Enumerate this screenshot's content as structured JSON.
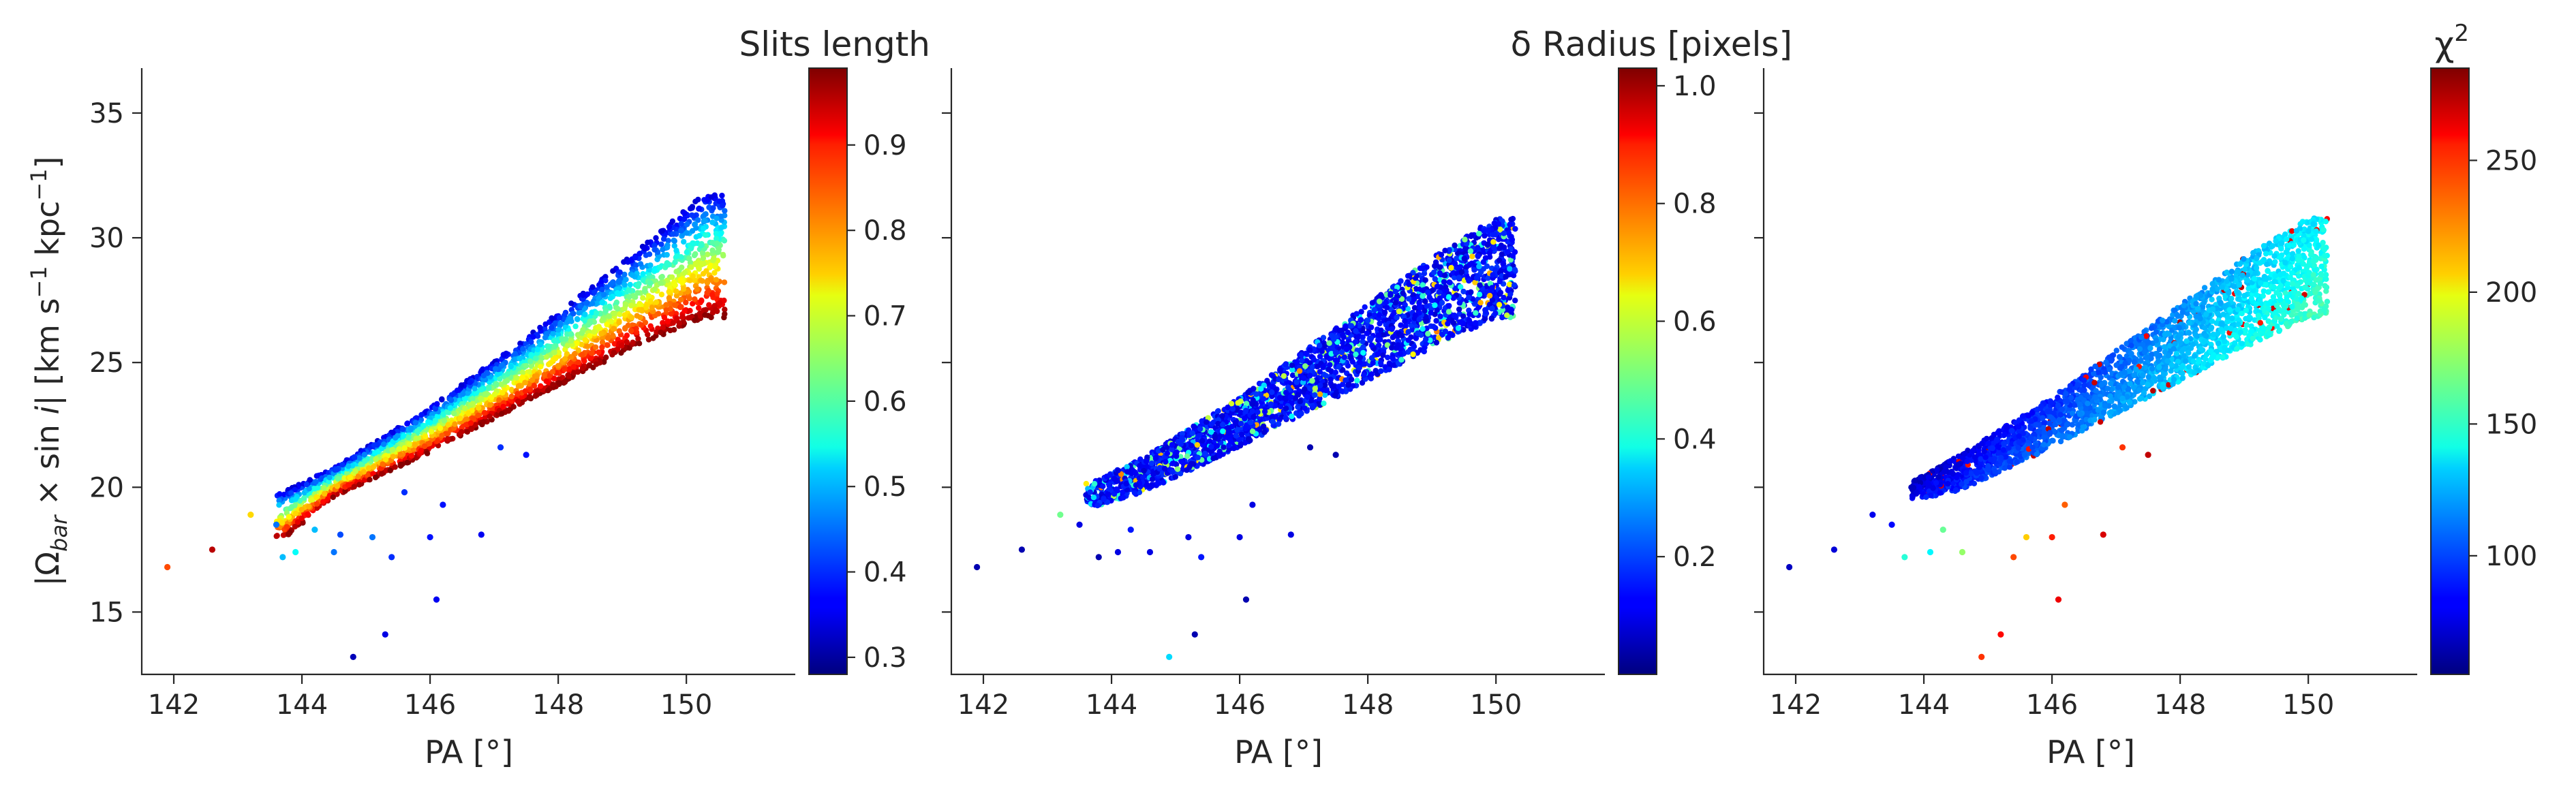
{
  "chart_data": [
    {
      "type": "scatter",
      "panel": 1,
      "xlabel": "PA [°]",
      "ylabel": "|Ω_bar × sin i|   [km s⁻¹ kpc⁻¹]",
      "xlim": [
        141.5,
        151.7
      ],
      "ylim": [
        12.5,
        36.8
      ],
      "xticks": [
        142,
        144,
        146,
        148,
        150
      ],
      "yticks": [
        15,
        20,
        25,
        30,
        35
      ],
      "colorbar": {
        "title": "Slits length",
        "colormap": "jet",
        "range": [
          0.28,
          0.99
        ],
        "ticks": [
          0.3,
          0.4,
          0.5,
          0.6,
          0.7,
          0.8,
          0.9
        ],
        "tick_labels": [
          "0.3",
          "0.4",
          "0.5",
          "0.6",
          "0.7",
          "0.8",
          "0.9"
        ]
      },
      "main_cloud": {
        "x_range": [
          143.6,
          150.6
        ],
        "lower_edge": [
          [
            143.7,
            17.9
          ],
          [
            144.5,
            19.6
          ],
          [
            146.0,
            21.4
          ],
          [
            147.5,
            23.4
          ],
          [
            149.0,
            25.4
          ],
          [
            150.3,
            26.8
          ]
        ],
        "upper_edge": [
          [
            143.7,
            19.8
          ],
          [
            144.5,
            20.8
          ],
          [
            146.0,
            23.2
          ],
          [
            147.5,
            26.0
          ],
          [
            149.0,
            29.0
          ],
          [
            150.3,
            31.8
          ]
        ],
        "color_trend": "blue/cyan at upper edge to dark red at lower edge"
      },
      "outliers": [
        {
          "x": 141.9,
          "y": 16.8,
          "c": 0.85
        },
        {
          "x": 142.6,
          "y": 17.5,
          "c": 0.95
        },
        {
          "x": 143.2,
          "y": 18.9,
          "c": 0.75
        },
        {
          "x": 143.6,
          "y": 18.5,
          "c": 0.45
        },
        {
          "x": 143.7,
          "y": 17.2,
          "c": 0.5
        },
        {
          "x": 143.9,
          "y": 17.4,
          "c": 0.55
        },
        {
          "x": 144.2,
          "y": 18.3,
          "c": 0.5
        },
        {
          "x": 144.5,
          "y": 17.4,
          "c": 0.45
        },
        {
          "x": 144.6,
          "y": 18.1,
          "c": 0.42
        },
        {
          "x": 144.8,
          "y": 13.2,
          "c": 0.32
        },
        {
          "x": 145.1,
          "y": 18.0,
          "c": 0.45
        },
        {
          "x": 145.3,
          "y": 14.1,
          "c": 0.35
        },
        {
          "x": 145.4,
          "y": 17.2,
          "c": 0.4
        },
        {
          "x": 145.6,
          "y": 19.8,
          "c": 0.4
        },
        {
          "x": 146.0,
          "y": 18.0,
          "c": 0.38
        },
        {
          "x": 146.1,
          "y": 15.5,
          "c": 0.36
        },
        {
          "x": 146.2,
          "y": 19.3,
          "c": 0.38
        },
        {
          "x": 146.8,
          "y": 18.1,
          "c": 0.36
        },
        {
          "x": 147.1,
          "y": 21.6,
          "c": 0.4
        },
        {
          "x": 147.5,
          "y": 21.3,
          "c": 0.38
        }
      ]
    },
    {
      "type": "scatter",
      "panel": 2,
      "xlabel": "PA [°]",
      "xlim": [
        141.5,
        151.7
      ],
      "ylim": [
        12.5,
        36.8
      ],
      "xticks": [
        142,
        144,
        146,
        148,
        150
      ],
      "colorbar": {
        "title": "δ Radius [pixels]",
        "colormap": "jet",
        "range": [
          0.0,
          1.03
        ],
        "ticks": [
          0.2,
          0.4,
          0.6,
          0.8,
          1.0
        ],
        "tick_labels": [
          "0.2",
          "0.4",
          "0.6",
          "0.8",
          "1.0"
        ]
      },
      "main_cloud": {
        "x_range": [
          143.6,
          150.3
        ],
        "lower_edge": [
          [
            143.7,
            19.2
          ],
          [
            144.5,
            19.8
          ],
          [
            146.0,
            21.6
          ],
          [
            147.5,
            23.6
          ],
          [
            149.0,
            25.6
          ],
          [
            150.0,
            26.8
          ]
        ],
        "upper_edge": [
          [
            143.7,
            20.2
          ],
          [
            144.5,
            21.2
          ],
          [
            146.0,
            23.6
          ],
          [
            147.5,
            26.4
          ],
          [
            149.0,
            29.2
          ],
          [
            150.0,
            30.8
          ]
        ],
        "color_trend": "mostly dark blue with scattered cyan/yellow points"
      },
      "outliers": [
        {
          "x": 141.9,
          "y": 16.8,
          "c": 0.05
        },
        {
          "x": 142.6,
          "y": 17.5,
          "c": 0.05
        },
        {
          "x": 143.2,
          "y": 18.9,
          "c": 0.5
        },
        {
          "x": 143.5,
          "y": 18.5,
          "c": 0.1
        },
        {
          "x": 143.8,
          "y": 17.2,
          "c": 0.05
        },
        {
          "x": 144.1,
          "y": 17.4,
          "c": 0.1
        },
        {
          "x": 144.3,
          "y": 18.3,
          "c": 0.15
        },
        {
          "x": 144.6,
          "y": 17.4,
          "c": 0.1
        },
        {
          "x": 144.9,
          "y": 13.2,
          "c": 0.35
        },
        {
          "x": 145.2,
          "y": 18.0,
          "c": 0.1
        },
        {
          "x": 145.3,
          "y": 14.1,
          "c": 0.05
        },
        {
          "x": 145.4,
          "y": 17.2,
          "c": 0.15
        },
        {
          "x": 146.0,
          "y": 18.0,
          "c": 0.1
        },
        {
          "x": 146.1,
          "y": 15.5,
          "c": 0.05
        },
        {
          "x": 146.2,
          "y": 19.3,
          "c": 0.1
        },
        {
          "x": 146.8,
          "y": 18.1,
          "c": 0.1
        },
        {
          "x": 147.1,
          "y": 21.6,
          "c": 0.05
        },
        {
          "x": 147.5,
          "y": 21.3,
          "c": 0.05
        }
      ]
    },
    {
      "type": "scatter",
      "panel": 3,
      "xlabel": "PA [°]",
      "xlim": [
        141.5,
        151.7
      ],
      "ylim": [
        12.5,
        36.8
      ],
      "xticks": [
        142,
        144,
        146,
        148,
        150
      ],
      "colorbar": {
        "title": "χ²",
        "colormap": "jet",
        "range": [
          55,
          285
        ],
        "ticks": [
          100,
          150,
          200,
          250
        ],
        "tick_labels": [
          "100",
          "150",
          "200",
          "250"
        ]
      },
      "main_cloud": {
        "x_range": [
          143.8,
          150.3
        ],
        "lower_edge": [
          [
            143.8,
            19.5
          ],
          [
            144.5,
            19.8
          ],
          [
            146.0,
            21.6
          ],
          [
            147.5,
            23.6
          ],
          [
            149.0,
            25.6
          ],
          [
            150.0,
            26.8
          ]
        ],
        "upper_edge": [
          [
            143.8,
            20.2
          ],
          [
            144.5,
            21.2
          ],
          [
            146.0,
            23.6
          ],
          [
            147.5,
            26.4
          ],
          [
            149.0,
            29.2
          ],
          [
            150.0,
            30.8
          ]
        ],
        "color_trend": "dark blue at low PA shifting to cyan/green at high PA"
      },
      "outliers": [
        {
          "x": 141.9,
          "y": 16.8,
          "c": 70
        },
        {
          "x": 142.6,
          "y": 17.5,
          "c": 75
        },
        {
          "x": 143.2,
          "y": 18.9,
          "c": 80
        },
        {
          "x": 143.5,
          "y": 18.5,
          "c": 85
        },
        {
          "x": 143.7,
          "y": 17.2,
          "c": 150
        },
        {
          "x": 144.1,
          "y": 17.4,
          "c": 140
        },
        {
          "x": 144.3,
          "y": 18.3,
          "c": 165
        },
        {
          "x": 144.6,
          "y": 17.4,
          "c": 175
        },
        {
          "x": 144.9,
          "y": 13.2,
          "c": 245
        },
        {
          "x": 145.2,
          "y": 14.1,
          "c": 255
        },
        {
          "x": 145.4,
          "y": 17.2,
          "c": 240
        },
        {
          "x": 145.6,
          "y": 18.0,
          "c": 210
        },
        {
          "x": 146.0,
          "y": 18.0,
          "c": 250
        },
        {
          "x": 146.1,
          "y": 15.5,
          "c": 260
        },
        {
          "x": 146.2,
          "y": 19.3,
          "c": 235
        },
        {
          "x": 146.8,
          "y": 18.1,
          "c": 265
        },
        {
          "x": 147.1,
          "y": 21.6,
          "c": 245
        },
        {
          "x": 147.5,
          "y": 21.3,
          "c": 270
        }
      ]
    }
  ]
}
